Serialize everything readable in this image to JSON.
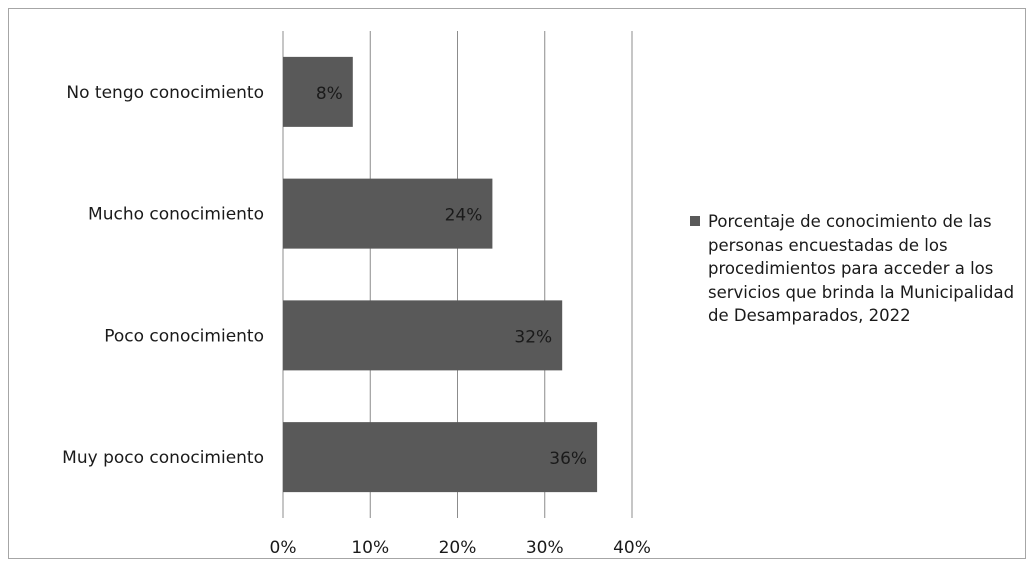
{
  "chart_data": {
    "type": "bar",
    "orientation": "horizontal",
    "categories": [
      "No tengo conocimiento",
      "Mucho conocimiento",
      "Poco conocimiento",
      "Muy poco conocimiento"
    ],
    "series": [
      {
        "name": "Porcentaje de conocimiento de las personas encuestadas de los procedimientos para acceder a los servicios que brinda la Municipalidad de Desamparados, 2022",
        "values": [
          8,
          24,
          32,
          36
        ],
        "data_labels": [
          "8%",
          "24%",
          "32%",
          "36%"
        ]
      }
    ],
    "xlim": [
      0,
      40
    ],
    "x_ticks": [
      "0%",
      "10%",
      "20%",
      "30%",
      "40%"
    ],
    "grid": "vertical",
    "legend_position": "right",
    "bar_color": "#595959"
  }
}
